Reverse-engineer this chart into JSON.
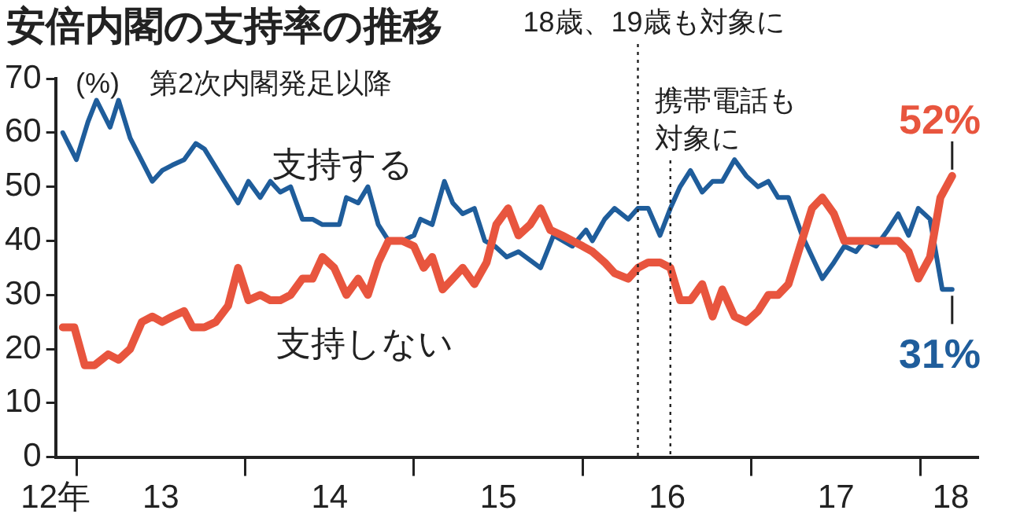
{
  "chart_data": {
    "type": "line",
    "title": "安倍内閣の支持率の推移",
    "subtitle": "第2次内閣発足以降",
    "ylabel": "(%)",
    "legend": false,
    "xlim": [
      "2012-11-17",
      "2018-05-03"
    ],
    "xticks": [
      {
        "value": "2012-11-17",
        "label": "12年"
      },
      {
        "value": "2013-01-01",
        "label": null
      },
      {
        "value": "2013-07-01",
        "label": "13"
      },
      {
        "value": "2014-01-01",
        "label": null
      },
      {
        "value": "2014-07-01",
        "label": "14"
      },
      {
        "value": "2015-01-01",
        "label": null
      },
      {
        "value": "2015-07-01",
        "label": "15"
      },
      {
        "value": "2016-01-01",
        "label": null
      },
      {
        "value": "2016-07-01",
        "label": "16"
      },
      {
        "value": "2017-01-01",
        "label": null
      },
      {
        "value": "2017-07-01",
        "label": "17"
      },
      {
        "value": "2018-01-01",
        "label": null
      },
      {
        "value": "2018-03-06",
        "label": "18"
      }
    ],
    "ylim": [
      0,
      70
    ],
    "yticks": [
      0,
      10,
      20,
      30,
      40,
      50,
      60,
      70
    ],
    "series": [
      {
        "name": "支持する",
        "color": "#1f5d9b",
        "x": [
          "2012-12-02",
          "2013-01-01",
          "2013-01-26",
          "2013-02-14",
          "2013-03-13",
          "2013-04-01",
          "2013-04-26",
          "2013-06-13",
          "2013-07-04",
          "2013-07-26",
          "2013-08-21",
          "2013-09-16",
          "2013-10-04",
          "2013-11-17",
          "2013-12-16",
          "2014-01-08",
          "2014-02-03",
          "2014-02-25",
          "2014-03-16",
          "2014-04-08",
          "2014-05-03",
          "2014-05-25",
          "2014-06-16",
          "2014-07-22",
          "2014-08-07",
          "2014-09-02",
          "2014-09-23",
          "2014-10-15",
          "2014-11-07",
          "2014-12-06",
          "2015-01-01",
          "2015-01-15",
          "2015-02-10",
          "2015-03-06",
          "2015-03-24",
          "2015-04-15",
          "2015-05-10",
          "2015-06-02",
          "2015-06-24",
          "2015-07-19",
          "2015-08-14",
          "2015-10-01",
          "2015-10-29",
          "2015-12-09",
          "2016-01-08",
          "2016-01-22",
          "2016-02-18",
          "2016-03-09",
          "2016-04-08",
          "2016-04-29",
          "2016-05-21",
          "2016-06-16",
          "2016-07-08",
          "2016-07-29",
          "2016-08-21",
          "2016-09-16",
          "2016-10-08",
          "2016-10-29",
          "2016-11-25",
          "2016-12-20",
          "2017-01-15",
          "2017-02-07",
          "2017-02-28",
          "2017-03-20",
          "2017-04-19",
          "2017-06-02",
          "2017-06-27",
          "2017-07-19",
          "2017-08-14",
          "2017-09-02",
          "2017-09-27",
          "2017-10-22",
          "2017-11-14",
          "2017-12-06",
          "2017-12-27",
          "2018-01-22",
          "2018-02-18",
          "2018-03-09"
        ],
        "values": [
          60,
          55,
          62,
          66,
          61,
          66,
          59,
          51,
          53,
          54,
          55,
          58,
          57,
          51,
          47,
          51,
          48,
          51,
          49,
          50,
          44,
          44,
          43,
          43,
          48,
          47,
          50,
          43,
          40,
          40,
          41,
          44,
          43,
          51,
          47,
          45,
          46,
          40,
          39,
          37,
          38,
          35,
          41,
          39,
          42,
          40,
          44,
          46,
          44,
          46,
          46,
          41,
          46,
          50,
          53,
          49,
          51,
          51,
          55,
          52,
          50,
          51,
          48,
          48,
          41,
          33,
          36,
          39,
          38,
          40,
          39,
          42,
          45,
          41,
          46,
          44,
          31,
          31
        ]
      },
      {
        "name": "支持しない",
        "color": "#e8553e",
        "x": [
          "2012-12-02",
          "2012-12-27",
          "2013-01-19",
          "2013-02-10",
          "2013-03-09",
          "2013-04-01",
          "2013-04-26",
          "2013-05-21",
          "2013-06-13",
          "2013-07-04",
          "2013-07-26",
          "2013-08-21",
          "2013-09-09",
          "2013-10-04",
          "2013-10-29",
          "2013-11-25",
          "2013-12-16",
          "2014-01-08",
          "2014-02-03",
          "2014-02-25",
          "2014-03-16",
          "2014-04-08",
          "2014-05-03",
          "2014-05-25",
          "2014-06-16",
          "2014-07-11",
          "2014-08-07",
          "2014-09-02",
          "2014-09-23",
          "2014-10-15",
          "2014-11-07",
          "2014-12-06",
          "2015-01-01",
          "2015-01-22",
          "2015-02-10",
          "2015-03-02",
          "2015-03-24",
          "2015-04-15",
          "2015-05-10",
          "2015-06-06",
          "2015-06-27",
          "2015-07-22",
          "2015-08-14",
          "2015-09-09",
          "2015-10-01",
          "2015-10-22",
          "2015-11-17",
          "2015-12-09",
          "2016-01-01",
          "2016-01-22",
          "2016-02-18",
          "2016-03-09",
          "2016-04-08",
          "2016-04-29",
          "2016-05-21",
          "2016-06-16",
          "2016-07-08",
          "2016-07-29",
          "2016-08-21",
          "2016-09-16",
          "2016-10-08",
          "2016-10-29",
          "2016-11-25",
          "2016-12-20",
          "2017-01-15",
          "2017-02-07",
          "2017-02-28",
          "2017-03-20",
          "2017-04-15",
          "2017-05-10",
          "2017-06-02",
          "2017-06-27",
          "2017-07-19",
          "2017-08-14",
          "2017-09-02",
          "2017-09-27",
          "2017-10-22",
          "2017-11-14",
          "2017-12-06",
          "2017-12-27",
          "2018-01-22",
          "2018-02-14",
          "2018-03-09"
        ],
        "values": [
          24,
          24,
          17,
          17,
          19,
          18,
          20,
          25,
          26,
          25,
          26,
          27,
          24,
          24,
          25,
          28,
          35,
          29,
          30,
          29,
          29,
          30,
          33,
          33,
          37,
          35,
          30,
          33,
          30,
          36,
          40,
          40,
          39,
          35,
          37,
          31,
          33,
          35,
          32,
          36,
          43,
          46,
          41,
          43,
          46,
          42,
          41,
          40,
          39,
          38,
          36,
          34,
          33,
          35,
          36,
          36,
          35,
          29,
          29,
          32,
          26,
          31,
          26,
          25,
          27,
          30,
          30,
          32,
          39,
          46,
          48,
          45,
          40,
          40,
          40,
          40,
          40,
          40,
          38,
          33,
          37,
          48,
          52
        ]
      }
    ],
    "ref_lines": [
      {
        "axis": "x",
        "value": "2016-04-29",
        "label": "18歳、19歳も対象に",
        "line_style": "dotted"
      },
      {
        "axis": "x",
        "value": "2016-07-08",
        "label": "携帯電話も対象に",
        "line_style": "dotted"
      }
    ],
    "annotations": [
      {
        "text": "52%",
        "x": "2018-03-09",
        "y": 52
      },
      {
        "text": "31%",
        "x": "2018-03-09",
        "y": 31
      }
    ]
  }
}
